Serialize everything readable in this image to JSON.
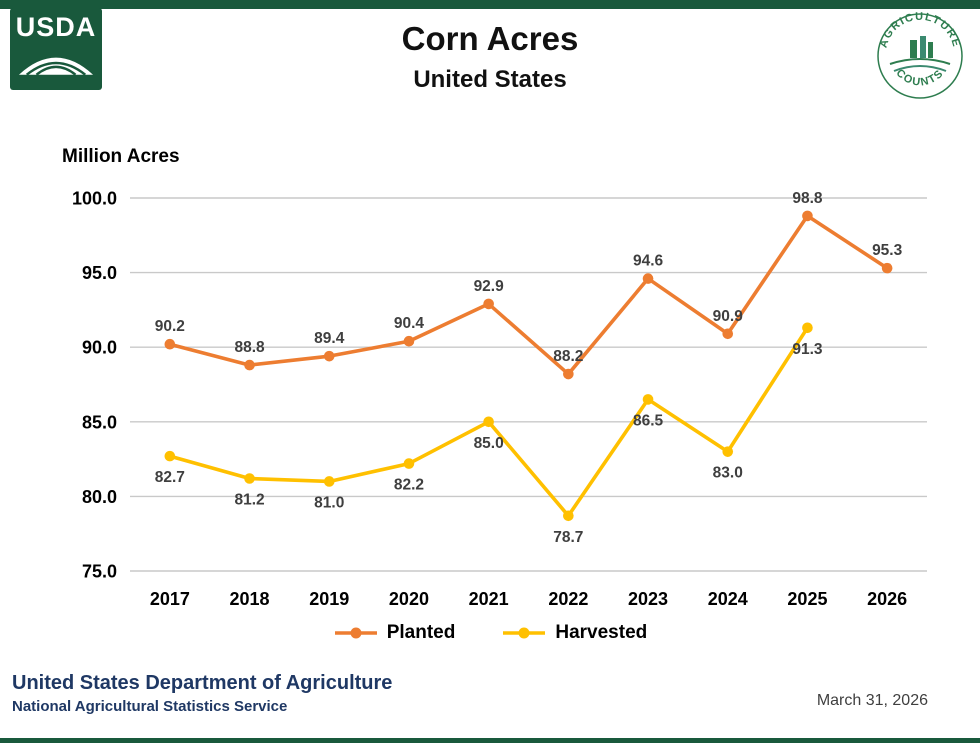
{
  "header": {
    "logo_text": "USDA",
    "badge_text_top": "AGRICULTURE",
    "badge_text_bottom": "COUNTS"
  },
  "chart_data": {
    "type": "line",
    "title": "Corn Acres",
    "subtitle": "United States",
    "ylabel": "Million Acres",
    "ylim": [
      75.0,
      100.0
    ],
    "yticks": [
      "100.0",
      "95.0",
      "90.0",
      "85.0",
      "80.0",
      "75.0"
    ],
    "grid": true,
    "legend_position": "bottom",
    "categories": [
      "2017",
      "2018",
      "2019",
      "2020",
      "2021",
      "2022",
      "2023",
      "2024",
      "2025",
      "2026"
    ],
    "series": [
      {
        "name": "Planted",
        "color": "#ED7D31",
        "label_position": "above",
        "values": [
          90.2,
          88.8,
          89.4,
          90.4,
          92.9,
          88.2,
          94.6,
          90.9,
          98.8,
          95.3
        ]
      },
      {
        "name": "Harvested",
        "color": "#FFC000",
        "label_position": "below",
        "values": [
          82.7,
          81.2,
          81.0,
          82.2,
          85.0,
          78.7,
          86.5,
          83.0,
          91.3,
          null
        ]
      }
    ]
  },
  "footer": {
    "org": "United States Department of Agriculture",
    "sub_org": "National Agricultural Statistics Service",
    "date": "March 31, 2026"
  },
  "colors": {
    "dark_green": "#19593C",
    "navy": "#1F3864",
    "data_label_gray": "#3F3F3F",
    "planted_orange": "#ED7D31",
    "harvested_yellow": "#FFC000"
  }
}
